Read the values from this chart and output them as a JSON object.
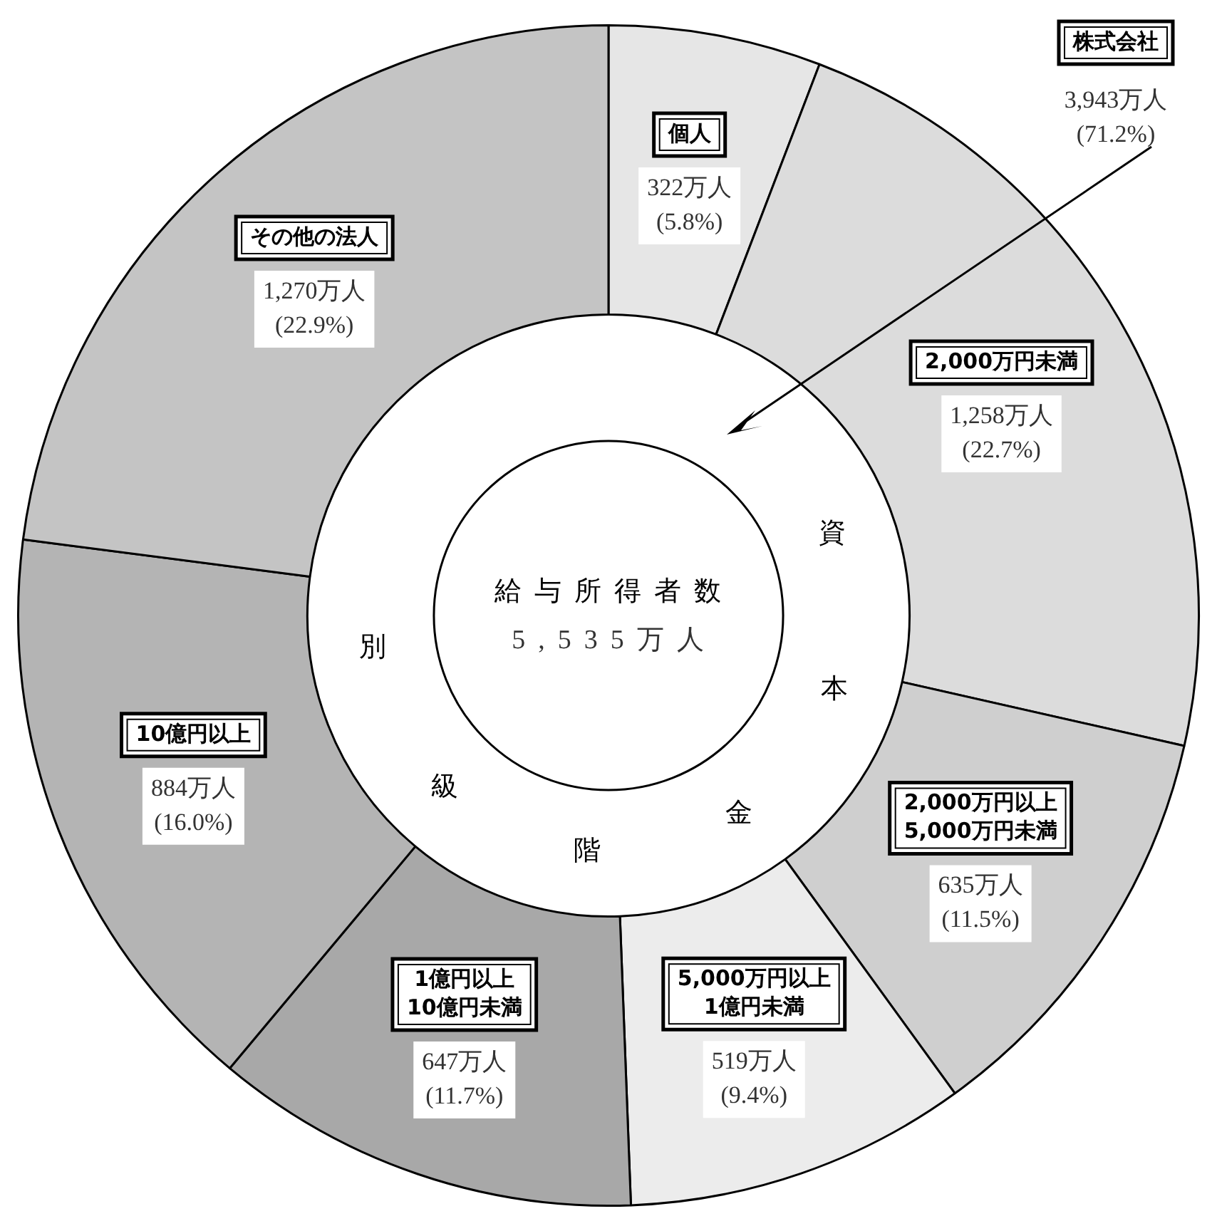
{
  "chart_data": {
    "type": "donut",
    "title": "給与所得者数",
    "subtitle": "5,535万人",
    "categories": [
      "個人",
      "2,000万円未満",
      "2,000万円以上\n5,000万円未満",
      "5,000万円以上\n1億円未満",
      "1億円以上\n10億円未満",
      "10億円以上",
      "その他の法人"
    ],
    "values": [
      322,
      1258,
      635,
      519,
      647,
      884,
      1270
    ],
    "value_labels": [
      "322万人\n(5.8%)",
      "1,258万人\n(22.7%)",
      "635万人\n(11.5%)",
      "519万人\n(9.4%)",
      "647万人\n(11.7%)",
      "884万人\n(16.0%)",
      "1,270万人\n(22.9%)"
    ],
    "colors": [
      "#e6e6e6",
      "#dcdcdc",
      "#cfcfcf",
      "#ececec",
      "#a8a8a8",
      "#b4b4b4",
      "#c4c4c4"
    ],
    "annotations": [
      "株式会社",
      "3,943万人\n(71.2%)",
      "資",
      "本",
      "金",
      "階",
      "級",
      "別"
    ],
    "legend": false
  }
}
